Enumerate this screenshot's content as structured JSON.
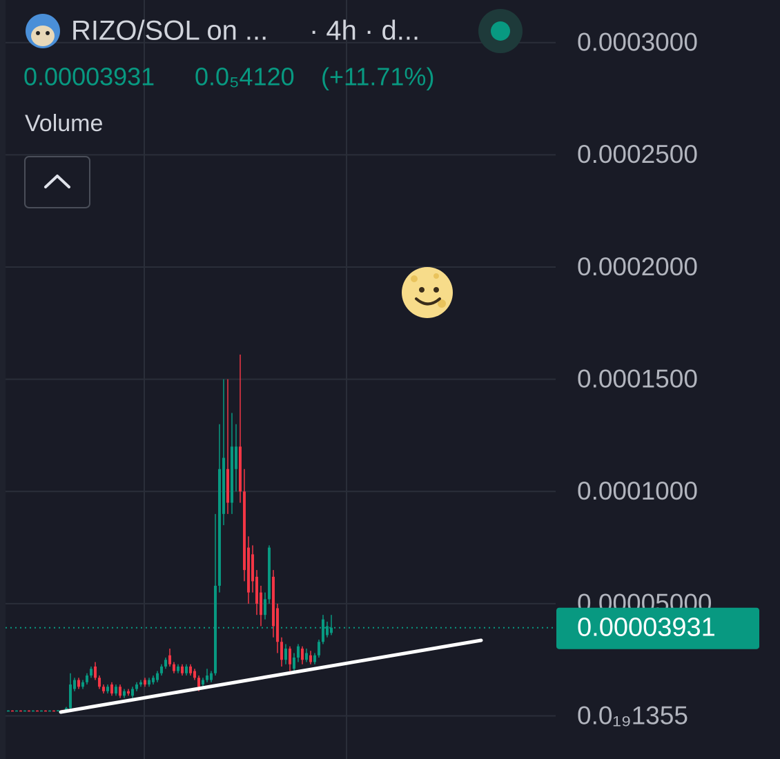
{
  "chart_data": {
    "type": "candlestick",
    "title": "RIZO/SOL on ...",
    "subtitle": "· 4h · d...",
    "last_price": 3.931e-05,
    "change": {
      "value": 4.12e-06,
      "label": "0.0₅4120"
    },
    "change_pct": {
      "value": 11.71,
      "label": "(+11.71%)"
    },
    "volume_label": "Volume",
    "up_color": "#089981",
    "down_color": "#f23645",
    "grid": true,
    "ylim": [
      -1.92e-05,
      0.000319
    ],
    "yticks": [
      {
        "value": 1.355e-20,
        "label": "0.0₁₉1355"
      },
      {
        "value": 5e-05,
        "label": "0.00005000"
      },
      {
        "value": 0.0001,
        "label": "0.0001000"
      },
      {
        "value": 0.00015,
        "label": "0.0001500"
      },
      {
        "value": 0.0002,
        "label": "0.0002000"
      },
      {
        "value": 0.00025,
        "label": "0.0002500"
      },
      {
        "value": 0.0003,
        "label": "0.0003000"
      }
    ],
    "open": [
      2.2e-06,
      2.4e-06,
      2.2e-06,
      2.4e-06,
      2.2e-06,
      2.4e-06,
      2.2e-06,
      2.4e-06,
      2.2e-06,
      2.4e-06,
      2.2e-06,
      2.4e-06,
      2.2e-06,
      2.5e-06,
      2.3e-06,
      3.5e-06,
      1.2e-05,
      1.6e-05,
      1.3e-05,
      1.5e-05,
      1.8e-05,
      2.2e-05,
      1.7e-05,
      1.3e-05,
      1.1e-05,
      1.4e-05,
      1e-05,
      1.3e-05,
      9e-06,
      1.1e-05,
      9e-06,
      1.2e-05,
      1.4e-05,
      1.6e-05,
      1.4e-05,
      1.5e-05,
      1.6e-05,
      1.9e-05,
      2.2e-05,
      2.7e-05,
      2.3e-05,
      2e-05,
      2.2e-05,
      1.9e-05,
      2.2e-05,
      2e-05,
      1.7e-05,
      1.4e-05,
      1.6e-05,
      1.6e-05,
      1.9e-05,
      5.8e-05,
      9e-05,
      0.00011,
      9.5e-05,
      0.00011,
      0.00012,
      0.0001,
      7.5e-05,
      7.2e-05,
      6.2e-05,
      5.5e-05,
      4.5e-05,
      5.2e-05,
      6.2e-05,
      4.8e-05,
      3.3e-05,
      2.5e-05,
      3e-05,
      2.1e-05,
      2.6e-05,
      3e-05,
      2.5e-05,
      2.7e-05,
      2.4e-05,
      2.7e-05,
      3.3e-05,
      3.6e-05,
      3.7e-05
    ],
    "high": [
      2.5e-06,
      2.5e-06,
      2.5e-06,
      2.5e-06,
      2.5e-06,
      2.5e-06,
      2.5e-06,
      2.5e-06,
      2.5e-06,
      2.5e-06,
      2.5e-06,
      2.5e-06,
      2.6e-06,
      2.7e-06,
      4e-06,
      1.9e-05,
      1.7e-05,
      1.7e-05,
      1.6e-05,
      1.9e-05,
      2.2e-05,
      2.4e-05,
      1.8e-05,
      1.4e-05,
      1.4e-05,
      1.5e-05,
      1.4e-05,
      1.4e-05,
      1.2e-05,
      1.2e-05,
      1.3e-05,
      1.5e-05,
      1.6e-05,
      1.7e-05,
      1.7e-05,
      1.8e-05,
      2e-05,
      2.3e-05,
      2.6e-05,
      3e-05,
      2.4e-05,
      2.3e-05,
      2.3e-05,
      2.3e-05,
      2.3e-05,
      2.1e-05,
      1.8e-05,
      1.7e-05,
      2.1e-05,
      2e-05,
      9e-05,
      0.00013,
      0.00015,
      0.00015,
      0.000135,
      0.00013,
      0.000161,
      0.00011,
      8e-05,
      7.6e-05,
      6.5e-05,
      5.8e-05,
      5.5e-05,
      7.6e-05,
      6.5e-05,
      5e-05,
      3.5e-05,
      3.2e-05,
      3.1e-05,
      2.8e-05,
      3.2e-05,
      3.1e-05,
      3e-05,
      2.9e-05,
      2.8e-05,
      3.4e-05,
      4.5e-05,
      4.2e-05,
      4.5e-05
    ],
    "low": [
      2.1e-06,
      2.1e-06,
      2.1e-06,
      2.1e-06,
      2.1e-06,
      2.1e-06,
      2.1e-06,
      2.1e-06,
      2.1e-06,
      2.1e-06,
      2.1e-06,
      2.1e-06,
      2.1e-06,
      2.2e-06,
      2.2e-06,
      3e-06,
      1.1e-05,
      1.2e-05,
      1.2e-05,
      1.4e-05,
      1.7e-05,
      1.6e-05,
      1.2e-05,
      1e-05,
      1e-05,
      9e-06,
      9e-06,
      8e-06,
      8e-06,
      9e-06,
      8e-06,
      1.1e-05,
      1.3e-05,
      1.3e-05,
      1.3e-05,
      1.4e-05,
      1.5e-05,
      1.8e-05,
      2.1e-05,
      2.2e-05,
      1.9e-05,
      1.9e-05,
      1.8e-05,
      1.8e-05,
      1.8e-05,
      1.6e-05,
      1.1e-05,
      1.3e-05,
      1.5e-05,
      1.5e-05,
      1.8e-05,
      5.5e-05,
      8.5e-05,
      9e-05,
      9e-05,
      0.0001,
      9.5e-05,
      6e-05,
      5e-05,
      5.5e-05,
      4.5e-05,
      4e-05,
      4.3e-05,
      5e-05,
      3.5e-05,
      2.8e-05,
      2.2e-05,
      2.3e-05,
      2e-05,
      2e-05,
      2.4e-05,
      2.3e-05,
      2.4e-05,
      2.3e-05,
      2.3e-05,
      2.6e-05,
      3.2e-05,
      3.5e-05,
      3.6e-05
    ],
    "close": [
      2.4e-06,
      2.2e-06,
      2.4e-06,
      2.2e-06,
      2.4e-06,
      2.2e-06,
      2.4e-06,
      2.2e-06,
      2.4e-06,
      2.2e-06,
      2.4e-06,
      2.2e-06,
      2.5e-06,
      2.3e-06,
      3.5e-06,
      1.4e-05,
      1.6e-05,
      1.3e-05,
      1.5e-05,
      1.8e-05,
      2.1e-05,
      1.7e-05,
      1.3e-05,
      1.1e-05,
      1.3e-05,
      1e-05,
      1.3e-05,
      9e-06,
      1.1e-05,
      1e-05,
      1.2e-05,
      1.4e-05,
      1.5e-05,
      1.4e-05,
      1.6e-05,
      1.7e-05,
      1.9e-05,
      2.2e-05,
      2.5e-05,
      2.3e-05,
      2e-05,
      2.2e-05,
      1.9e-05,
      2.2e-05,
      1.9e-05,
      1.7e-05,
      1.3e-05,
      1.6e-05,
      1.8e-05,
      1.9e-05,
      5.8e-05,
      0.00011,
      0.000115,
      9.5e-05,
      0.00012,
      0.00012,
      0.0001,
      6.5e-05,
      5.5e-05,
      6e-05,
      5e-05,
      4.5e-05,
      5.2e-05,
      7.5e-05,
      4e-05,
      3.3e-05,
      2.5e-05,
      3e-05,
      2.3e-05,
      2.6e-05,
      3.1e-05,
      2.5e-05,
      2.8e-05,
      2.4e-05,
      2.7e-05,
      3.3e-05,
      4.3e-05,
      4e-05,
      3.931e-05
    ]
  }
}
